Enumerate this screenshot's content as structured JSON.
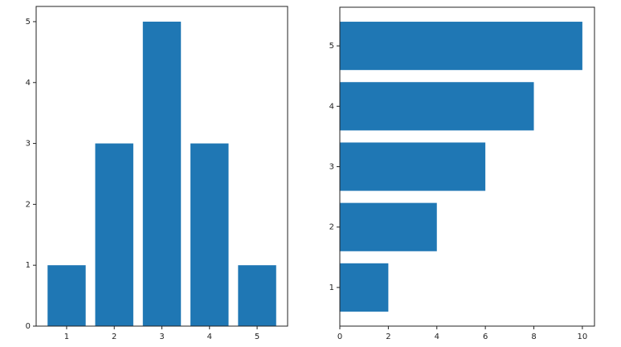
{
  "chart_data": [
    {
      "type": "bar",
      "x": [
        1,
        2,
        3,
        4,
        5
      ],
      "values": [
        1,
        3,
        5,
        3,
        1
      ],
      "color": "#1f77b4",
      "xlim": [
        0.36,
        5.64
      ],
      "ylim": [
        0,
        5.25
      ],
      "xticks": [
        1,
        2,
        3,
        4,
        5
      ],
      "yticks": [
        0,
        1,
        2,
        3,
        4,
        5
      ]
    },
    {
      "type": "barh",
      "y": [
        1,
        2,
        3,
        4,
        5
      ],
      "values": [
        2,
        4,
        6,
        8,
        10
      ],
      "color": "#1f77b4",
      "xlim": [
        0,
        10.5
      ],
      "ylim": [
        0.36,
        5.64
      ],
      "xticks": [
        0,
        2,
        4,
        6,
        8,
        10
      ],
      "yticks": [
        1,
        2,
        3,
        4,
        5
      ]
    }
  ]
}
